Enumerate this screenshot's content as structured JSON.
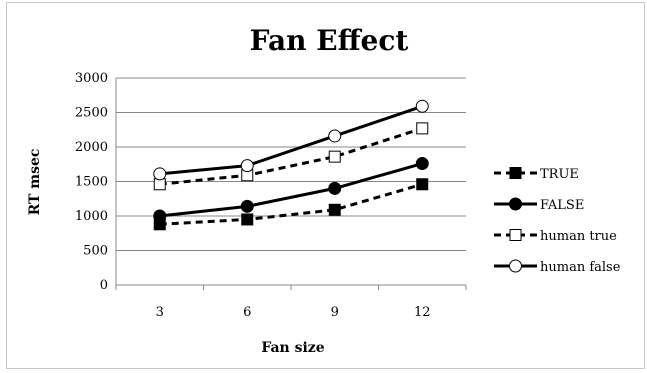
{
  "chart_data": {
    "type": "line",
    "title": "Fan  Effect",
    "xlabel": "Fan size",
    "ylabel": "RT msec",
    "categories": [
      "3",
      "6",
      "9",
      "12"
    ],
    "ylim": [
      0,
      3000
    ],
    "yticks": [
      "0",
      "500",
      "1000",
      "1500",
      "2000",
      "2500",
      "3000"
    ],
    "grid": true,
    "legend_position": "right",
    "series": [
      {
        "name": "TRUE",
        "values": [
          880,
          950,
          1090,
          1460
        ],
        "line": "dashed",
        "marker": "square",
        "marker_fill": "filled",
        "color": "#000000"
      },
      {
        "name": "FALSE",
        "values": [
          1000,
          1140,
          1400,
          1760
        ],
        "line": "solid",
        "marker": "circle",
        "marker_fill": "filled",
        "color": "#000000"
      },
      {
        "name": "human true",
        "values": [
          1460,
          1590,
          1860,
          2270
        ],
        "line": "dashed",
        "marker": "square",
        "marker_fill": "open",
        "color": "#000000"
      },
      {
        "name": "human false",
        "values": [
          1610,
          1730,
          2160,
          2590
        ],
        "line": "solid",
        "marker": "circle",
        "marker_fill": "open",
        "color": "#000000"
      }
    ]
  }
}
